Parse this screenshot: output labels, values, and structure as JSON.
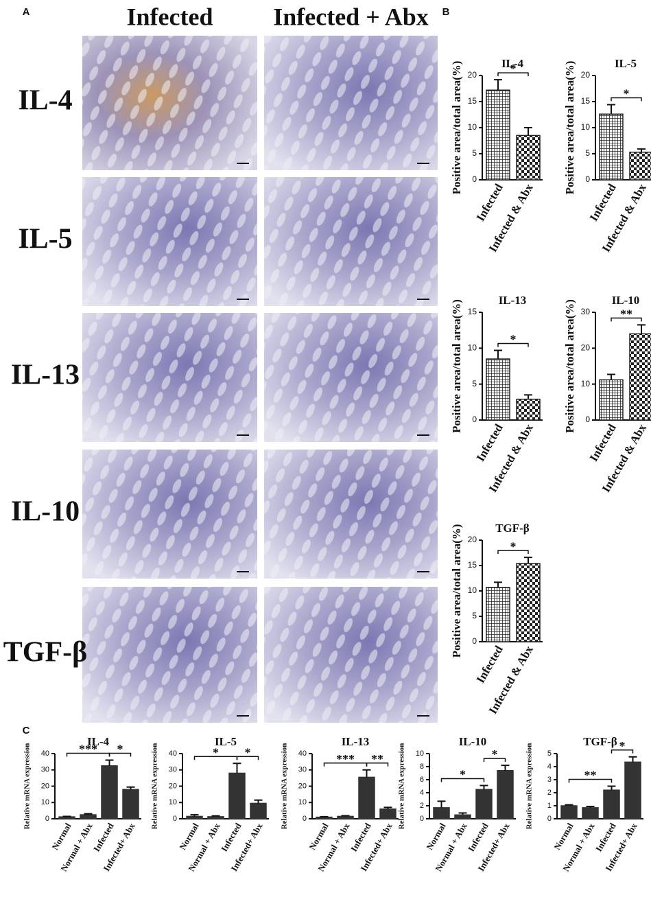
{
  "panel_labels": [
    "A",
    "B",
    "C"
  ],
  "micrographs": {
    "columns": [
      "Infected",
      "Infected + Abx"
    ],
    "rows": [
      "IL-4",
      "IL-5",
      "IL-13",
      "IL-10",
      "TGF-β"
    ]
  },
  "chart_data": [
    {
      "type": "bar",
      "title": "IL-4",
      "y_label": "Positive area/total area(%)",
      "categories": [
        "Infected",
        "Infected & Abx"
      ],
      "values": [
        17.2,
        8.5
      ],
      "errors": [
        2.0,
        1.5
      ],
      "color": "#222222",
      "patterns": [
        "crosshatch",
        "checker"
      ],
      "ylim": [
        0,
        20
      ],
      "yticks": [
        0,
        5,
        10,
        15,
        20
      ],
      "comparisons": [
        {
          "between": [
            "Infected",
            "Infected & Abx"
          ],
          "label": "*"
        }
      ]
    },
    {
      "type": "bar",
      "title": "IL-5",
      "y_label": "Positive area/total area(%)",
      "categories": [
        "Infected",
        "Infected & Abx"
      ],
      "values": [
        12.6,
        5.3
      ],
      "errors": [
        1.8,
        0.6
      ],
      "color": "#222222",
      "patterns": [
        "crosshatch",
        "checker"
      ],
      "ylim": [
        0,
        20
      ],
      "yticks": [
        0,
        5,
        10,
        15,
        20
      ],
      "comparisons": [
        {
          "between": [
            "Infected",
            "Infected & Abx"
          ],
          "label": "*"
        }
      ]
    },
    {
      "type": "bar",
      "title": "IL-13",
      "y_label": "Positive area/total area(%)",
      "categories": [
        "Infected",
        "Infected & Abx"
      ],
      "values": [
        8.5,
        2.9
      ],
      "errors": [
        1.2,
        0.6
      ],
      "color": "#222222",
      "patterns": [
        "crosshatch",
        "checker"
      ],
      "ylim": [
        0,
        15
      ],
      "yticks": [
        0,
        5,
        10,
        15
      ],
      "comparisons": [
        {
          "between": [
            "Infected",
            "Infected & Abx"
          ],
          "label": "*"
        }
      ]
    },
    {
      "type": "bar",
      "title": "IL-10",
      "y_label": "Positive area/total area(%)",
      "categories": [
        "Infected",
        "Infected & Abx"
      ],
      "values": [
        11.2,
        24.0
      ],
      "errors": [
        1.5,
        2.5
      ],
      "color": "#222222",
      "patterns": [
        "crosshatch",
        "checker"
      ],
      "ylim": [
        0,
        30
      ],
      "yticks": [
        0,
        10,
        20,
        30
      ],
      "comparisons": [
        {
          "between": [
            "Infected",
            "Infected & Abx"
          ],
          "label": "**"
        }
      ]
    },
    {
      "type": "bar",
      "title": "TGF-β",
      "y_label": "Positive area/total area(%)",
      "categories": [
        "Infected",
        "Infected & Abx"
      ],
      "values": [
        10.7,
        15.4
      ],
      "errors": [
        1.0,
        1.2
      ],
      "color": "#222222",
      "patterns": [
        "crosshatch",
        "checker"
      ],
      "ylim": [
        0,
        20
      ],
      "yticks": [
        0,
        5,
        10,
        15,
        20
      ],
      "comparisons": [
        {
          "between": [
            "Infected",
            "Infected & Abx"
          ],
          "label": "*"
        }
      ]
    },
    {
      "type": "bar",
      "title": "IL-4",
      "y_label": "Relative mRNA expression",
      "categories": [
        "Normal",
        "Normal + Abx",
        "Infected",
        "Infected+ Abx"
      ],
      "values": [
        1.2,
        2.5,
        32.5,
        18.0
      ],
      "errors": [
        0.3,
        0.6,
        3.5,
        1.5
      ],
      "color": "#333333",
      "ylim": [
        0,
        40
      ],
      "yticks": [
        0,
        10,
        20,
        30,
        40
      ],
      "comparisons": [
        {
          "between": [
            "Normal",
            "Infected"
          ],
          "label": "***"
        },
        {
          "between": [
            "Infected",
            "Infected+ Abx"
          ],
          "label": "*"
        }
      ]
    },
    {
      "type": "bar",
      "title": "IL-5",
      "y_label": "Relative mRNA expression",
      "categories": [
        "Normal",
        "Normal + Abx",
        "Infected",
        "Infected+ Abx"
      ],
      "values": [
        1.5,
        1.3,
        28.0,
        9.5
      ],
      "errors": [
        1.0,
        0.5,
        6.0,
        2.0
      ],
      "color": "#333333",
      "ylim": [
        0,
        40
      ],
      "yticks": [
        0,
        10,
        20,
        30,
        40
      ],
      "comparisons": [
        {
          "between": [
            "Normal",
            "Infected"
          ],
          "label": "*"
        },
        {
          "between": [
            "Infected",
            "Infected+ Abx"
          ],
          "label": "*"
        }
      ]
    },
    {
      "type": "bar",
      "title": "IL-13",
      "y_label": "Relative mRNA expression",
      "categories": [
        "Normal",
        "Normal + Abx",
        "Infected",
        "Infected+ Abx"
      ],
      "values": [
        1.0,
        1.5,
        25.5,
        6.0
      ],
      "errors": [
        0.3,
        0.4,
        4.5,
        1.0
      ],
      "color": "#333333",
      "ylim": [
        0,
        40
      ],
      "yticks": [
        0,
        10,
        20,
        30,
        40
      ],
      "comparisons": [
        {
          "between": [
            "Normal",
            "Infected"
          ],
          "label": "***"
        },
        {
          "between": [
            "Infected",
            "Infected+ Abx"
          ],
          "label": "**"
        }
      ]
    },
    {
      "type": "bar",
      "title": "IL-10",
      "y_label": "Relative mRNA expression",
      "categories": [
        "Normal",
        "Normal + Abx",
        "Infected",
        "Infected+ Abx"
      ],
      "values": [
        1.7,
        0.6,
        4.5,
        7.4
      ],
      "errors": [
        1.0,
        0.3,
        0.6,
        0.8
      ],
      "color": "#333333",
      "ylim": [
        0,
        10
      ],
      "yticks": [
        0,
        2,
        4,
        6,
        8,
        10
      ],
      "comparisons": [
        {
          "between": [
            "Normal",
            "Infected"
          ],
          "label": "*"
        },
        {
          "between": [
            "Infected",
            "Infected+ Abx"
          ],
          "label": "*"
        }
      ]
    },
    {
      "type": "bar",
      "title": "TGF-β",
      "y_label": "Relative mRNA expression",
      "categories": [
        "Normal",
        "Normal + Abx",
        "Infected",
        "Infected+ Abx"
      ],
      "values": [
        1.0,
        0.85,
        2.2,
        4.35
      ],
      "errors": [
        0.07,
        0.1,
        0.3,
        0.4
      ],
      "color": "#333333",
      "ylim": [
        0,
        5
      ],
      "yticks": [
        0,
        1,
        2,
        3,
        4,
        5
      ],
      "comparisons": [
        {
          "between": [
            "Normal",
            "Infected"
          ],
          "label": "**"
        },
        {
          "between": [
            "Infected",
            "Infected+ Abx"
          ],
          "label": "*"
        }
      ]
    }
  ]
}
